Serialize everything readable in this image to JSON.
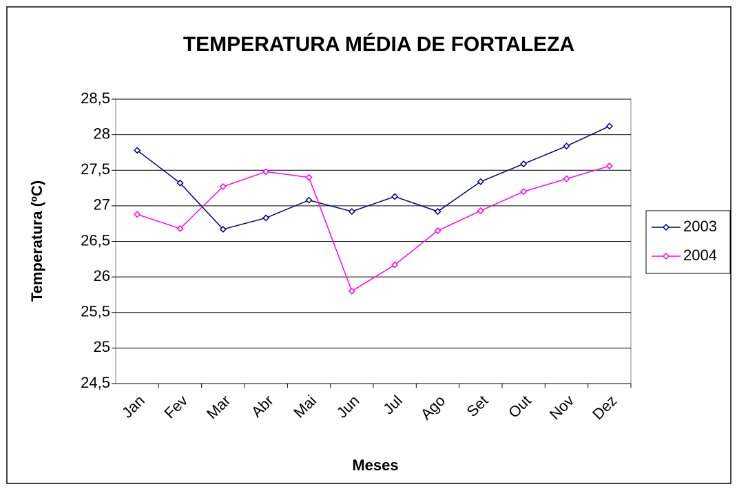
{
  "chart_data": {
    "type": "line",
    "title": "TEMPERATURA MÉDIA DE FORTALEZA",
    "xlabel": "Meses",
    "ylabel": "Temperatura (ºC)",
    "categories": [
      "Jan",
      "Fev",
      "Mar",
      "Abr",
      "Mai",
      "Jun",
      "Jul",
      "Ago",
      "Set",
      "Out",
      "Nov",
      "Dez"
    ],
    "series": [
      {
        "name": "2003",
        "color": "#000080",
        "values": [
          27.78,
          27.32,
          26.67,
          26.83,
          27.08,
          26.92,
          27.13,
          26.92,
          27.34,
          27.59,
          27.84,
          28.12
        ]
      },
      {
        "name": "2004",
        "color": "#ff00ff",
        "values": [
          26.88,
          26.68,
          27.27,
          27.48,
          27.4,
          25.8,
          26.17,
          26.65,
          26.93,
          27.2,
          27.38,
          27.56
        ]
      }
    ],
    "ylim": [
      24.5,
      28.5
    ],
    "yticks": [
      {
        "value": 24.5,
        "label": "24,5"
      },
      25,
      {
        "value": 25.5,
        "label": "25,5"
      },
      26,
      {
        "value": 26.5,
        "label": "26,5"
      },
      27,
      {
        "value": 27.5,
        "label": "27,5"
      },
      28,
      {
        "value": 28.5,
        "label": "28,5"
      }
    ],
    "grid": true,
    "legend": "right"
  }
}
